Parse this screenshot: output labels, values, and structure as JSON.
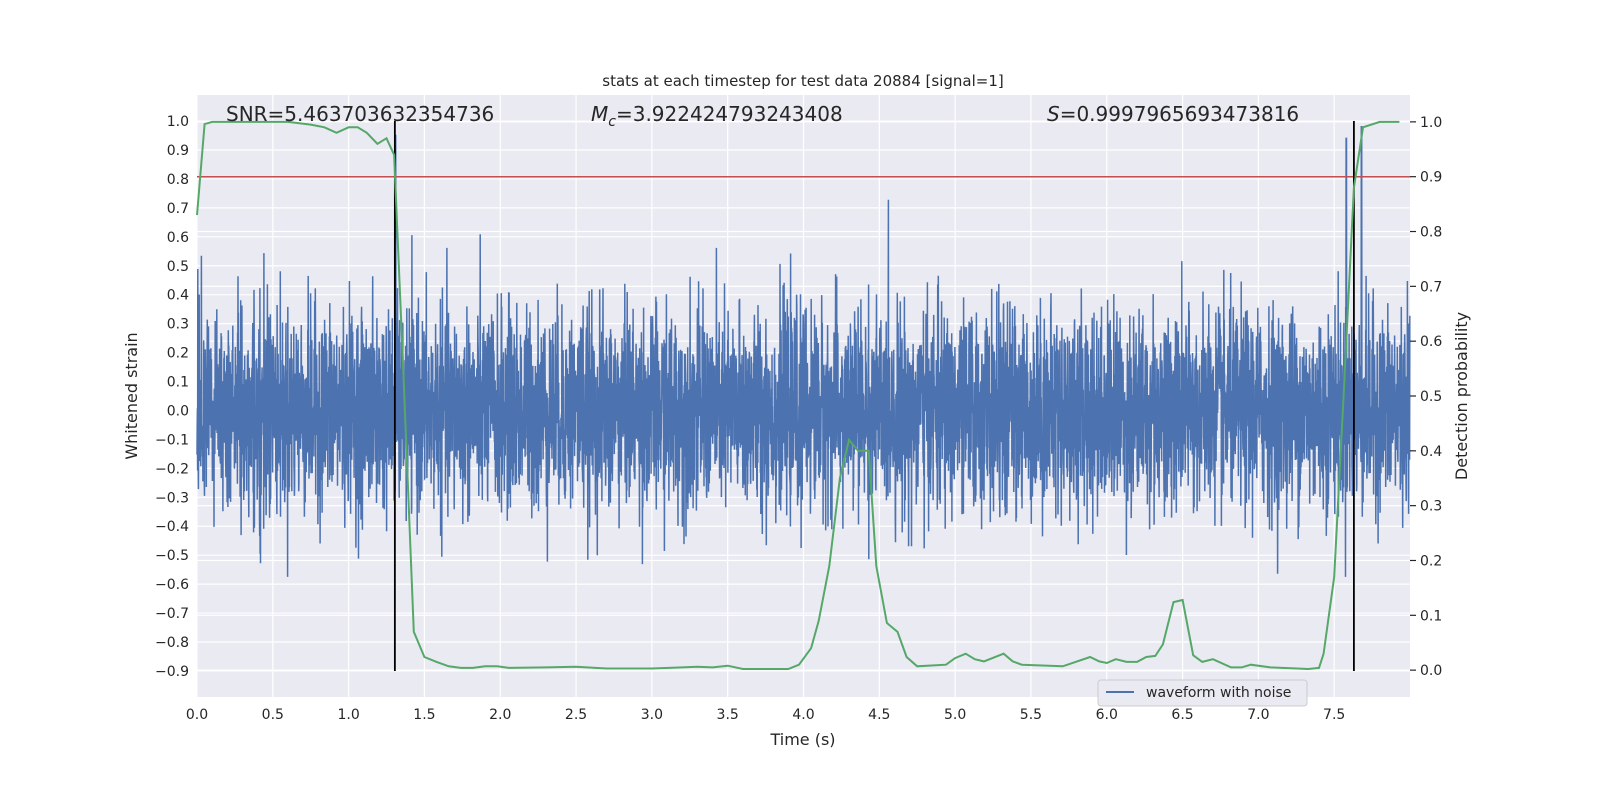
{
  "chart_data": {
    "type": "line",
    "title": "stats at each timestep for test data 20884 [signal=1]",
    "xlabel": "Time (s)",
    "ylabel_left": "Whitened strain",
    "ylabel_right": "Detection probability",
    "xlim": [
      0,
      8
    ],
    "ylim_left": [
      -0.99,
      1.09
    ],
    "ylim_right": [
      -0.049,
      1.049
    ],
    "xticks": [
      "0.0",
      "0.5",
      "1.0",
      "1.5",
      "2.0",
      "2.5",
      "3.0",
      "3.5",
      "4.0",
      "4.5",
      "5.0",
      "5.5",
      "6.0",
      "6.5",
      "7.0",
      "7.5"
    ],
    "yticks_left": [
      "1.0",
      "0.9",
      "0.8",
      "0.7",
      "0.6",
      "0.5",
      "0.4",
      "0.3",
      "0.2",
      "0.1",
      "0.0",
      "−0.1",
      "−0.2",
      "−0.3",
      "−0.4",
      "−0.5",
      "−0.6",
      "−0.7",
      "−0.8",
      "−0.9"
    ],
    "yticks_right": [
      "1.0",
      "0.9",
      "0.8",
      "0.7",
      "0.6",
      "0.5",
      "0.4",
      "0.3",
      "0.2",
      "0.1",
      "0.0"
    ],
    "grid": true,
    "legend": {
      "placement": "lower-right",
      "entries": [
        "waveform with noise"
      ]
    },
    "annotations": {
      "snr": "SNR=5.463703632354736",
      "mc_symbol": "M",
      "mc_sub": "c",
      "mc_value": "=3.922424793243408",
      "s_symbol": "S",
      "s_value": "=0.9997965693473816"
    },
    "colors": {
      "waveform": "#4c72b0",
      "probability": "#55a868",
      "threshold": "#c44e52",
      "markers": "#000000",
      "axes_bg": "#eaeaf2"
    },
    "waveform_noise": {
      "name": "waveform with noise",
      "axis": "left",
      "approx_envelope": [
        -0.9,
        0.95
      ],
      "note_peaks": [
        [
          1.31,
          0.95
        ],
        [
          7.58,
          0.94
        ],
        [
          7.68,
          0.98
        ]
      ]
    },
    "threshold_line": {
      "axis": "right",
      "y": 0.9
    },
    "vertical_markers": {
      "x": [
        1.305,
        7.63
      ],
      "axis": "left",
      "y_range": [
        -0.9,
        1.0
      ]
    },
    "probability": {
      "axis": "right",
      "x": [
        0,
        0.05,
        0.1,
        0.3,
        0.6,
        0.75,
        0.84,
        0.92,
        1.0,
        1.06,
        1.12,
        1.19,
        1.25,
        1.3,
        1.36,
        1.43,
        1.5,
        1.58,
        1.66,
        1.74,
        1.82,
        1.9,
        1.98,
        2.06,
        2.3,
        2.5,
        2.7,
        3.0,
        3.2,
        3.3,
        3.4,
        3.5,
        3.6,
        3.9,
        3.97,
        4.05,
        4.1,
        4.17,
        4.24,
        4.3,
        4.36,
        4.43,
        4.48,
        4.55,
        4.62,
        4.68,
        4.75,
        4.94,
        5.0,
        5.07,
        5.13,
        5.19,
        5.32,
        5.38,
        5.44,
        5.71,
        5.89,
        5.95,
        6.0,
        6.06,
        6.13,
        6.2,
        6.26,
        6.32,
        6.37,
        6.44,
        6.5,
        6.57,
        6.63,
        6.7,
        6.82,
        6.89,
        6.95,
        7.08,
        7.33,
        7.4,
        7.43,
        7.5,
        7.56,
        7.63,
        7.69,
        7.8,
        7.93
      ],
      "y": [
        0.83,
        0.996,
        1.0,
        1.0,
        1.0,
        0.995,
        0.99,
        0.98,
        0.99,
        0.99,
        0.98,
        0.96,
        0.97,
        0.94,
        0.55,
        0.07,
        0.024,
        0.015,
        0.007,
        0.004,
        0.004,
        0.007,
        0.007,
        0.004,
        0.005,
        0.006,
        0.003,
        0.003,
        0.005,
        0.006,
        0.005,
        0.008,
        0.002,
        0.002,
        0.01,
        0.04,
        0.09,
        0.19,
        0.35,
        0.42,
        0.4,
        0.4,
        0.19,
        0.086,
        0.07,
        0.024,
        0.007,
        0.01,
        0.022,
        0.03,
        0.02,
        0.016,
        0.03,
        0.016,
        0.01,
        0.007,
        0.024,
        0.016,
        0.013,
        0.02,
        0.015,
        0.015,
        0.024,
        0.026,
        0.047,
        0.124,
        0.128,
        0.027,
        0.015,
        0.02,
        0.005,
        0.005,
        0.01,
        0.005,
        0.002,
        0.004,
        0.03,
        0.17,
        0.49,
        0.88,
        0.99,
        1.0,
        1.0
      ]
    }
  }
}
